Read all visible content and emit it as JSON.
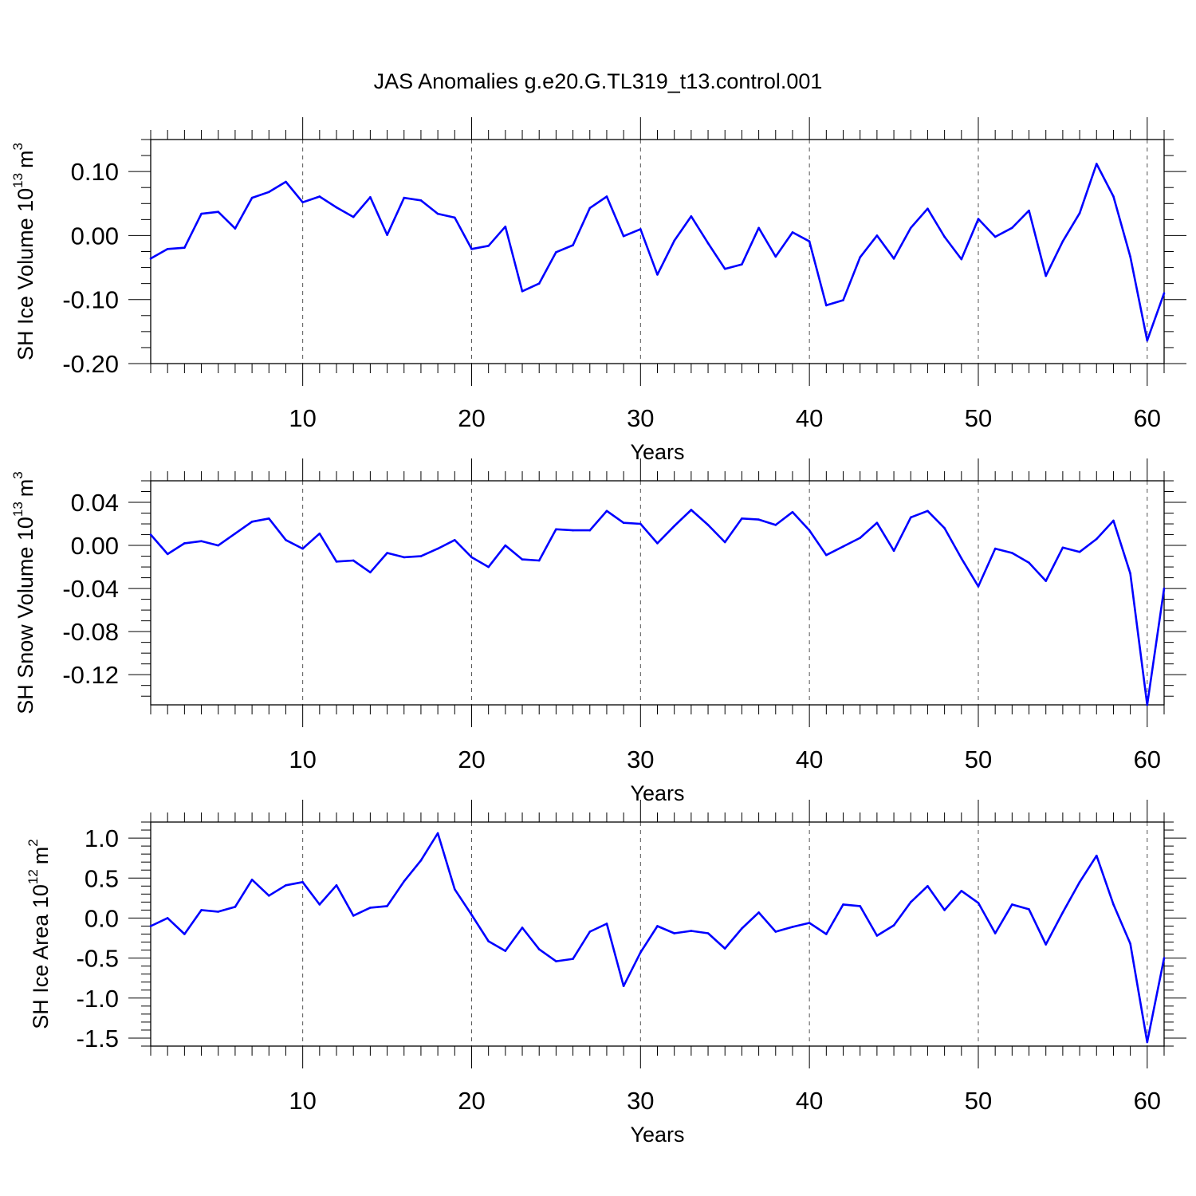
{
  "title": "JAS Anomalies g.e20.G.TL319_t13.control.001",
  "colors": {
    "line": "#0000ff",
    "axis": "#000000",
    "grid": "#555555",
    "background": "#ffffff"
  },
  "chart_data": [
    {
      "type": "line",
      "ylabel": "SH Ice Volume 10",
      "ylabel_exp": "13",
      "ylabel_unit": "m",
      "ylabel_unit_exp": "3",
      "xlabel": "Years",
      "xlim": [
        1,
        61
      ],
      "ylim": [
        -0.2,
        0.15
      ],
      "grid": "vertical dashed at major x ticks",
      "xticks": [
        10,
        20,
        30,
        40,
        50,
        60
      ],
      "xtick_labels": [
        "10",
        "20",
        "30",
        "40",
        "50",
        "60"
      ],
      "yticks": [
        0.1,
        0.0,
        -0.1,
        -0.2
      ],
      "ytick_labels": [
        "0.10",
        "0.00",
        "-0.10",
        "-0.20"
      ],
      "yminor": [
        0.15,
        0.125,
        0.075,
        0.05,
        0.025,
        -0.025,
        -0.05,
        -0.075,
        -0.125,
        -0.15,
        -0.175
      ],
      "x": [
        1,
        2,
        3,
        4,
        5,
        6,
        7,
        8,
        9,
        10,
        11,
        12,
        13,
        14,
        15,
        16,
        17,
        18,
        19,
        20,
        21,
        22,
        23,
        24,
        25,
        26,
        27,
        28,
        29,
        30,
        31,
        32,
        33,
        34,
        35,
        36,
        37,
        38,
        39,
        40,
        41,
        42,
        43,
        44,
        45,
        46,
        47,
        48,
        49,
        50,
        51,
        52,
        53,
        54,
        55,
        56,
        57,
        58,
        59,
        60,
        61
      ],
      "values": [
        -0.036,
        -0.021,
        -0.019,
        0.034,
        0.037,
        0.011,
        0.059,
        0.068,
        0.084,
        0.052,
        0.061,
        0.044,
        0.029,
        0.06,
        0.001,
        0.059,
        0.055,
        0.034,
        0.028,
        -0.021,
        -0.016,
        0.014,
        -0.087,
        -0.075,
        -0.026,
        -0.015,
        0.043,
        0.061,
        -0.001,
        0.01,
        -0.061,
        -0.008,
        0.03,
        -0.012,
        -0.052,
        -0.045,
        0.012,
        -0.033,
        0.005,
        -0.009,
        -0.109,
        -0.101,
        -0.034,
        0.0,
        -0.036,
        0.012,
        0.042,
        -0.002,
        -0.037,
        0.026,
        -0.002,
        0.012,
        0.039,
        -0.063,
        -0.009,
        0.035,
        0.112,
        0.061,
        -0.033,
        -0.164,
        -0.09
      ]
    },
    {
      "type": "line",
      "ylabel": "SH Snow Volume 10",
      "ylabel_exp": "13",
      "ylabel_unit": "m",
      "ylabel_unit_exp": "3",
      "xlabel": "Years",
      "xlim": [
        1,
        61
      ],
      "ylim": [
        -0.148,
        0.06
      ],
      "grid": "vertical dashed at major x ticks",
      "xticks": [
        10,
        20,
        30,
        40,
        50,
        60
      ],
      "xtick_labels": [
        "10",
        "20",
        "30",
        "40",
        "50",
        "60"
      ],
      "yticks": [
        0.04,
        0.0,
        -0.04,
        -0.08,
        -0.12
      ],
      "ytick_labels": [
        "0.04",
        "0.00",
        "-0.04",
        "-0.08",
        "-0.12"
      ],
      "yminor": [
        0.06,
        0.05,
        0.03,
        0.02,
        0.01,
        -0.01,
        -0.02,
        -0.03,
        -0.05,
        -0.06,
        -0.07,
        -0.09,
        -0.1,
        -0.11,
        -0.13,
        -0.14
      ],
      "x": [
        1,
        2,
        3,
        4,
        5,
        6,
        7,
        8,
        9,
        10,
        11,
        12,
        13,
        14,
        15,
        16,
        17,
        18,
        19,
        20,
        21,
        22,
        23,
        24,
        25,
        26,
        27,
        28,
        29,
        30,
        31,
        32,
        33,
        34,
        35,
        36,
        37,
        38,
        39,
        40,
        41,
        42,
        43,
        44,
        45,
        46,
        47,
        48,
        49,
        50,
        51,
        52,
        53,
        54,
        55,
        56,
        57,
        58,
        59,
        60,
        61
      ],
      "values": [
        0.01,
        -0.008,
        0.002,
        0.004,
        0.0,
        0.011,
        0.022,
        0.025,
        0.005,
        -0.003,
        0.011,
        -0.015,
        -0.014,
        -0.025,
        -0.007,
        -0.011,
        -0.01,
        -0.003,
        0.005,
        -0.011,
        -0.02,
        0.0,
        -0.013,
        -0.014,
        0.015,
        0.014,
        0.014,
        0.032,
        0.021,
        0.02,
        0.002,
        0.018,
        0.033,
        0.019,
        0.003,
        0.025,
        0.024,
        0.019,
        0.031,
        0.014,
        -0.009,
        -0.001,
        0.007,
        0.021,
        -0.005,
        0.026,
        0.032,
        0.016,
        -0.012,
        -0.038,
        -0.003,
        -0.007,
        -0.016,
        -0.033,
        -0.002,
        -0.006,
        0.006,
        0.023,
        -0.026,
        -0.148,
        -0.04
      ]
    },
    {
      "type": "line",
      "ylabel": "SH Ice Area 10",
      "ylabel_exp": "12",
      "ylabel_unit": "m",
      "ylabel_unit_exp": "2",
      "xlabel": "Years",
      "xlim": [
        1,
        61
      ],
      "ylim": [
        -1.6,
        1.2
      ],
      "grid": "vertical dashed at major x ticks",
      "xticks": [
        10,
        20,
        30,
        40,
        50,
        60
      ],
      "xtick_labels": [
        "10",
        "20",
        "30",
        "40",
        "50",
        "60"
      ],
      "yticks": [
        1.0,
        0.5,
        0.0,
        -0.5,
        -1.0,
        -1.5
      ],
      "ytick_labels": [
        "1.0",
        "0.5",
        "0.0",
        "-0.5",
        "-1.0",
        "-1.5"
      ],
      "yminor": [
        1.2,
        1.1,
        0.9,
        0.8,
        0.7,
        0.6,
        0.4,
        0.3,
        0.2,
        0.1,
        -0.1,
        -0.2,
        -0.3,
        -0.4,
        -0.6,
        -0.7,
        -0.8,
        -0.9,
        -1.1,
        -1.2,
        -1.3,
        -1.4,
        -1.6
      ],
      "x": [
        1,
        2,
        3,
        4,
        5,
        6,
        7,
        8,
        9,
        10,
        11,
        12,
        13,
        14,
        15,
        16,
        17,
        18,
        19,
        20,
        21,
        22,
        23,
        24,
        25,
        26,
        27,
        28,
        29,
        30,
        31,
        32,
        33,
        34,
        35,
        36,
        37,
        38,
        39,
        40,
        41,
        42,
        43,
        44,
        45,
        46,
        47,
        48,
        49,
        50,
        51,
        52,
        53,
        54,
        55,
        56,
        57,
        58,
        59,
        60,
        61
      ],
      "values": [
        -0.1,
        0.0,
        -0.2,
        0.1,
        0.08,
        0.14,
        0.48,
        0.28,
        0.41,
        0.45,
        0.17,
        0.41,
        0.03,
        0.13,
        0.15,
        0.46,
        0.72,
        1.06,
        0.36,
        0.04,
        -0.29,
        -0.41,
        -0.12,
        -0.39,
        -0.54,
        -0.51,
        -0.17,
        -0.07,
        -0.85,
        -0.43,
        -0.1,
        -0.19,
        -0.16,
        -0.19,
        -0.38,
        -0.13,
        0.07,
        -0.17,
        -0.11,
        -0.06,
        -0.2,
        0.17,
        0.15,
        -0.22,
        -0.09,
        0.2,
        0.4,
        0.1,
        0.34,
        0.19,
        -0.19,
        0.17,
        0.11,
        -0.33,
        0.07,
        0.45,
        0.78,
        0.17,
        -0.32,
        -1.55,
        -0.5
      ]
    }
  ]
}
